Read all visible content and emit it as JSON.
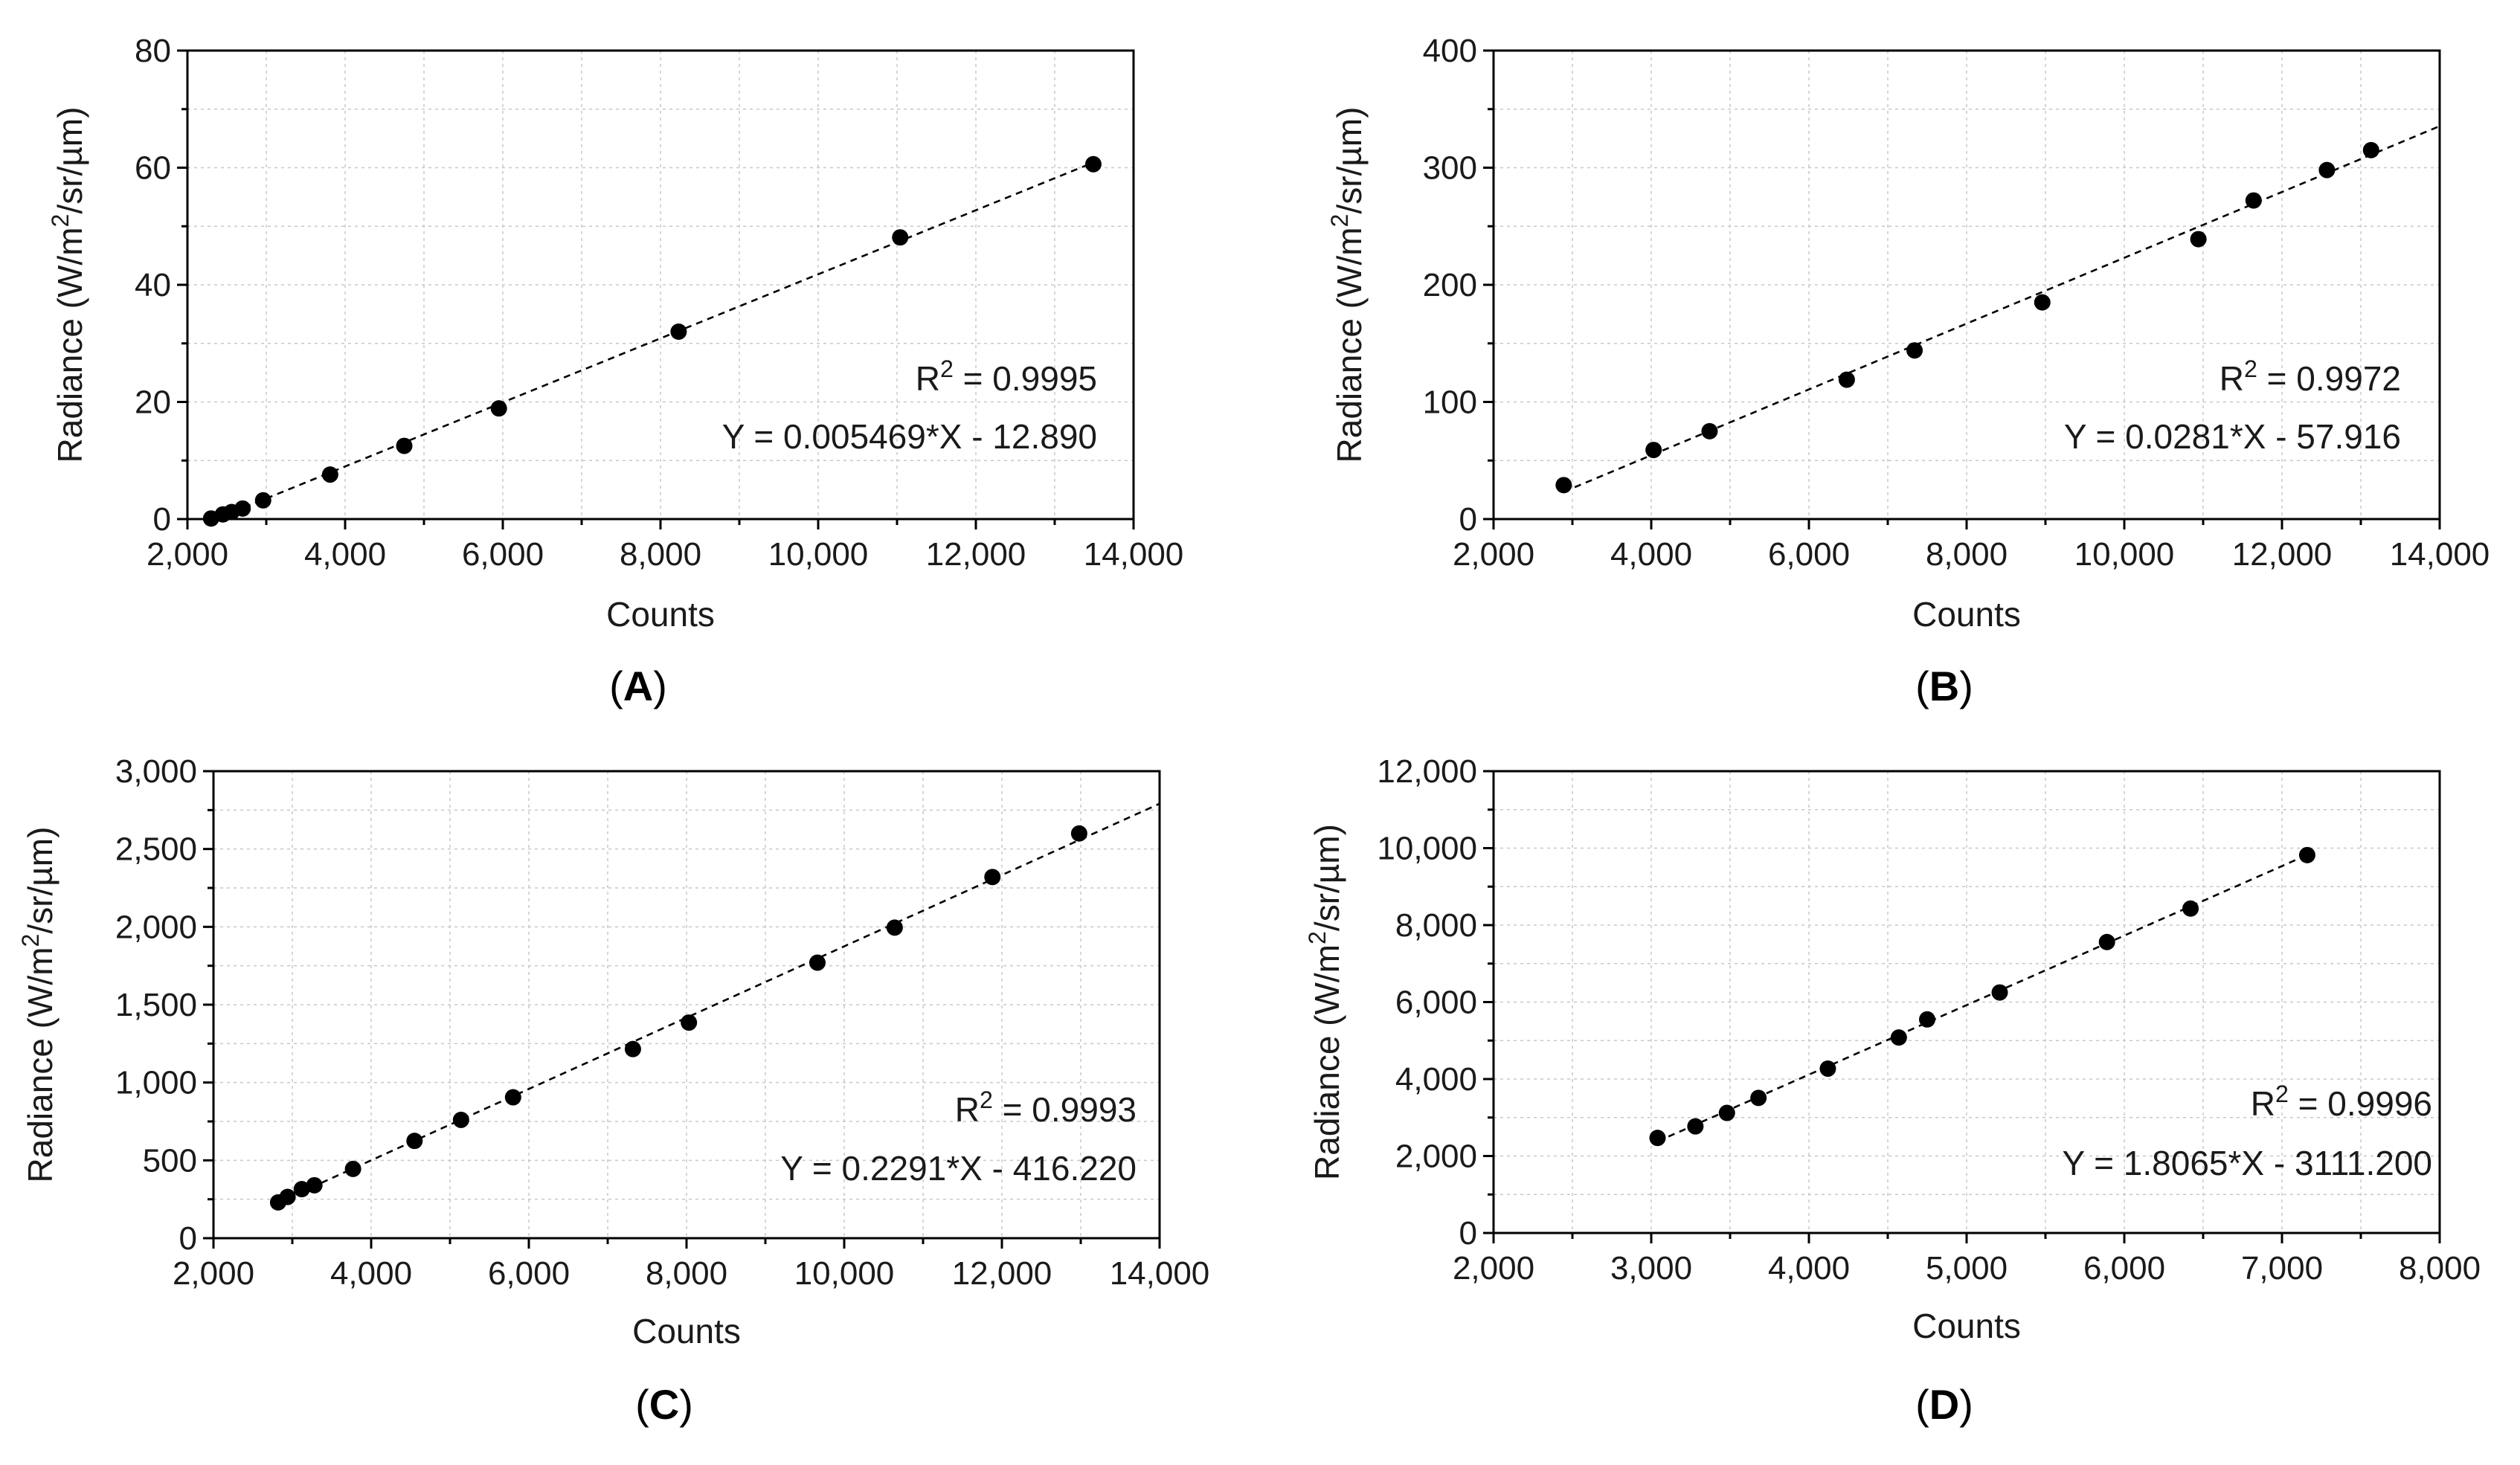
{
  "chart_data": [
    {
      "id": "A",
      "type": "scatter",
      "panel_label": "A",
      "xlabel": "Counts",
      "ylabel": "Radiance (W/m2/sr/µm)",
      "xlim": [
        2000,
        14000
      ],
      "ylim": [
        0,
        80
      ],
      "xticks": [
        2000,
        4000,
        6000,
        8000,
        10000,
        12000,
        14000
      ],
      "yticks": [
        0,
        20,
        40,
        60,
        80
      ],
      "xtick_labels": [
        "2,000",
        "4,000",
        "6,000",
        "8,000",
        "10,000",
        "12,000",
        "14,000"
      ],
      "ytick_labels": [
        "0",
        "20",
        "40",
        "60",
        "80"
      ],
      "points": [
        [
          2300,
          0.1
        ],
        [
          2450,
          0.8
        ],
        [
          2560,
          1.2
        ],
        [
          2700,
          1.8
        ],
        [
          2960,
          3.2
        ],
        [
          3810,
          7.6
        ],
        [
          4750,
          12.5
        ],
        [
          5950,
          18.9
        ],
        [
          8230,
          32.0
        ],
        [
          11040,
          48.1
        ],
        [
          13490,
          60.6
        ]
      ],
      "fit": {
        "slope": 0.005469,
        "intercept": -12.89,
        "x_range": [
          2300,
          13500
        ]
      },
      "r2_label": "R2 = 0.9995",
      "equation_label": "Y = 0.005469*X - 12.890"
    },
    {
      "id": "B",
      "type": "scatter",
      "panel_label": "B",
      "xlabel": "Counts",
      "ylabel": "Radiance (W/m2/sr/µm)",
      "xlim": [
        2000,
        14000
      ],
      "ylim": [
        0,
        400
      ],
      "xticks": [
        2000,
        4000,
        6000,
        8000,
        10000,
        12000,
        14000
      ],
      "yticks": [
        0,
        100,
        200,
        300,
        400
      ],
      "xtick_labels": [
        "2,000",
        "4,000",
        "6,000",
        "8,000",
        "10,000",
        "12,000",
        "14,000"
      ],
      "ytick_labels": [
        "0",
        "100",
        "200",
        "300",
        "400"
      ],
      "points": [
        [
          2890,
          29
        ],
        [
          4030,
          59
        ],
        [
          4740,
          75
        ],
        [
          6480,
          119
        ],
        [
          7340,
          144
        ],
        [
          8960,
          185
        ],
        [
          10940,
          239
        ],
        [
          11640,
          272
        ],
        [
          12570,
          298
        ],
        [
          13130,
          315
        ]
      ],
      "fit": {
        "slope": 0.0281,
        "intercept": -57.916,
        "x_range": [
          2890,
          14000
        ]
      },
      "r2_label": "R2 = 0.9972",
      "equation_label": "Y = 0.0281*X - 57.916"
    },
    {
      "id": "C",
      "type": "scatter",
      "panel_label": "C",
      "xlabel": "Counts",
      "ylabel": "Radiance (W/m2/sr/µm)",
      "xlim": [
        2000,
        14000
      ],
      "ylim": [
        0,
        3000
      ],
      "xticks": [
        2000,
        4000,
        6000,
        8000,
        10000,
        12000,
        14000
      ],
      "yticks": [
        0,
        500,
        1000,
        1500,
        2000,
        2500,
        3000
      ],
      "xtick_labels": [
        "2,000",
        "4,000",
        "6,000",
        "8,000",
        "10,000",
        "12,000",
        "14,000"
      ],
      "ytick_labels": [
        "0",
        "500",
        "1,000",
        "1,500",
        "2,000",
        "2,500",
        "3,000"
      ],
      "points": [
        [
          2820,
          230
        ],
        [
          2940,
          265
        ],
        [
          3120,
          315
        ],
        [
          3280,
          340
        ],
        [
          3770,
          445
        ],
        [
          4550,
          625
        ],
        [
          5140,
          760
        ],
        [
          5800,
          905
        ],
        [
          7320,
          1215
        ],
        [
          8030,
          1385
        ],
        [
          9660,
          1770
        ],
        [
          10640,
          1995
        ],
        [
          11880,
          2320
        ],
        [
          12980,
          2600
        ]
      ],
      "fit": {
        "slope": 0.2291,
        "intercept": -416.22,
        "x_range": [
          2820,
          14000
        ]
      },
      "r2_label": "R2 = 0.9993",
      "equation_label": "Y = 0.2291*X - 416.220"
    },
    {
      "id": "D",
      "type": "scatter",
      "panel_label": "D",
      "xlabel": "Counts",
      "ylabel": "Radiance (W/m2/sr/µm)",
      "xlim": [
        2000,
        8000
      ],
      "ylim": [
        0,
        12000
      ],
      "xticks": [
        2000,
        3000,
        4000,
        5000,
        6000,
        7000,
        8000
      ],
      "yticks": [
        0,
        2000,
        4000,
        6000,
        8000,
        10000,
        12000
      ],
      "xtick_labels": [
        "2,000",
        "3,000",
        "4,000",
        "5,000",
        "6,000",
        "7,000",
        "8,000"
      ],
      "ytick_labels": [
        "0",
        "2,000",
        "4,000",
        "6,000",
        "8,000",
        "10,000",
        "12,000"
      ],
      "points": [
        [
          3040,
          2470
        ],
        [
          3280,
          2770
        ],
        [
          3480,
          3120
        ],
        [
          3680,
          3510
        ],
        [
          4120,
          4270
        ],
        [
          4570,
          5080
        ],
        [
          4750,
          5550
        ],
        [
          5210,
          6250
        ],
        [
          5890,
          7560
        ],
        [
          6420,
          8430
        ],
        [
          7160,
          9820
        ]
      ],
      "fit": {
        "slope": 1.8065,
        "intercept": -3111.2,
        "x_range": [
          3040,
          7160
        ]
      },
      "r2_label": "R2 = 0.9996",
      "equation_label": "Y = 1.8065*X - 3111.200"
    }
  ]
}
